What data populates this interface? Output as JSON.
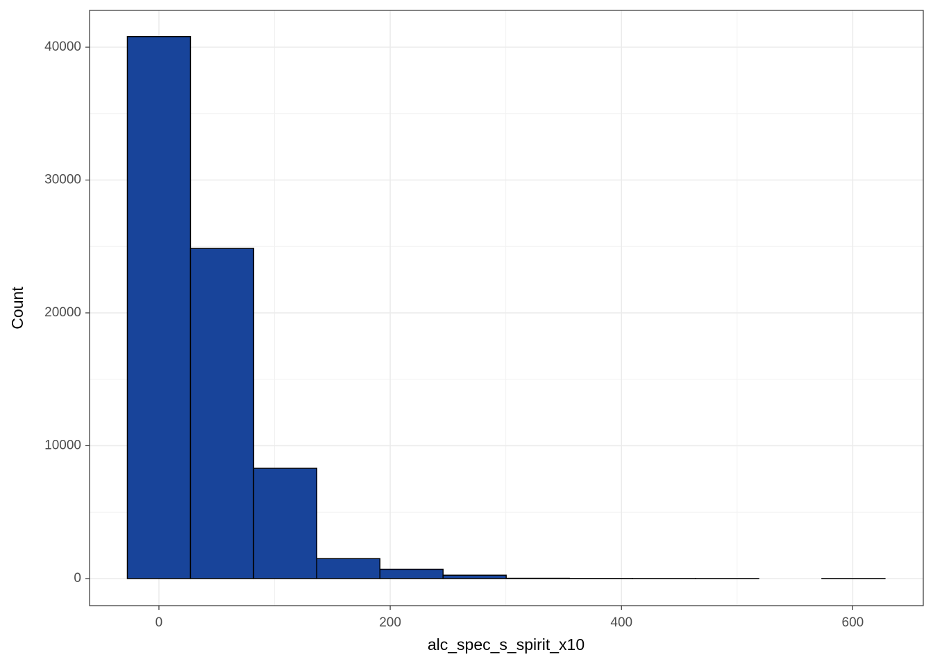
{
  "chart_data": {
    "type": "histogram",
    "x_label": "alc_spec_s_spirit_x10",
    "y_label": "Count",
    "bins": [
      -27.3,
      27.3,
      81.9,
      136.5,
      191.1,
      245.7,
      300.3,
      354.9,
      409.5,
      464.1,
      518.7,
      573.3,
      627.9
    ],
    "values": [
      40800,
      24850,
      8300,
      1500,
      700,
      250,
      20,
      5,
      2,
      1,
      0,
      1
    ],
    "color": "#18449a",
    "edge_color": "#000000",
    "xlim": [
      -60,
      661
    ],
    "ylim": [
      -2040,
      42770
    ],
    "xticks": [
      0,
      200,
      400,
      600
    ],
    "yticks": [
      0,
      10000,
      20000,
      30000,
      40000
    ],
    "grid": true,
    "minor_grid": true
  }
}
